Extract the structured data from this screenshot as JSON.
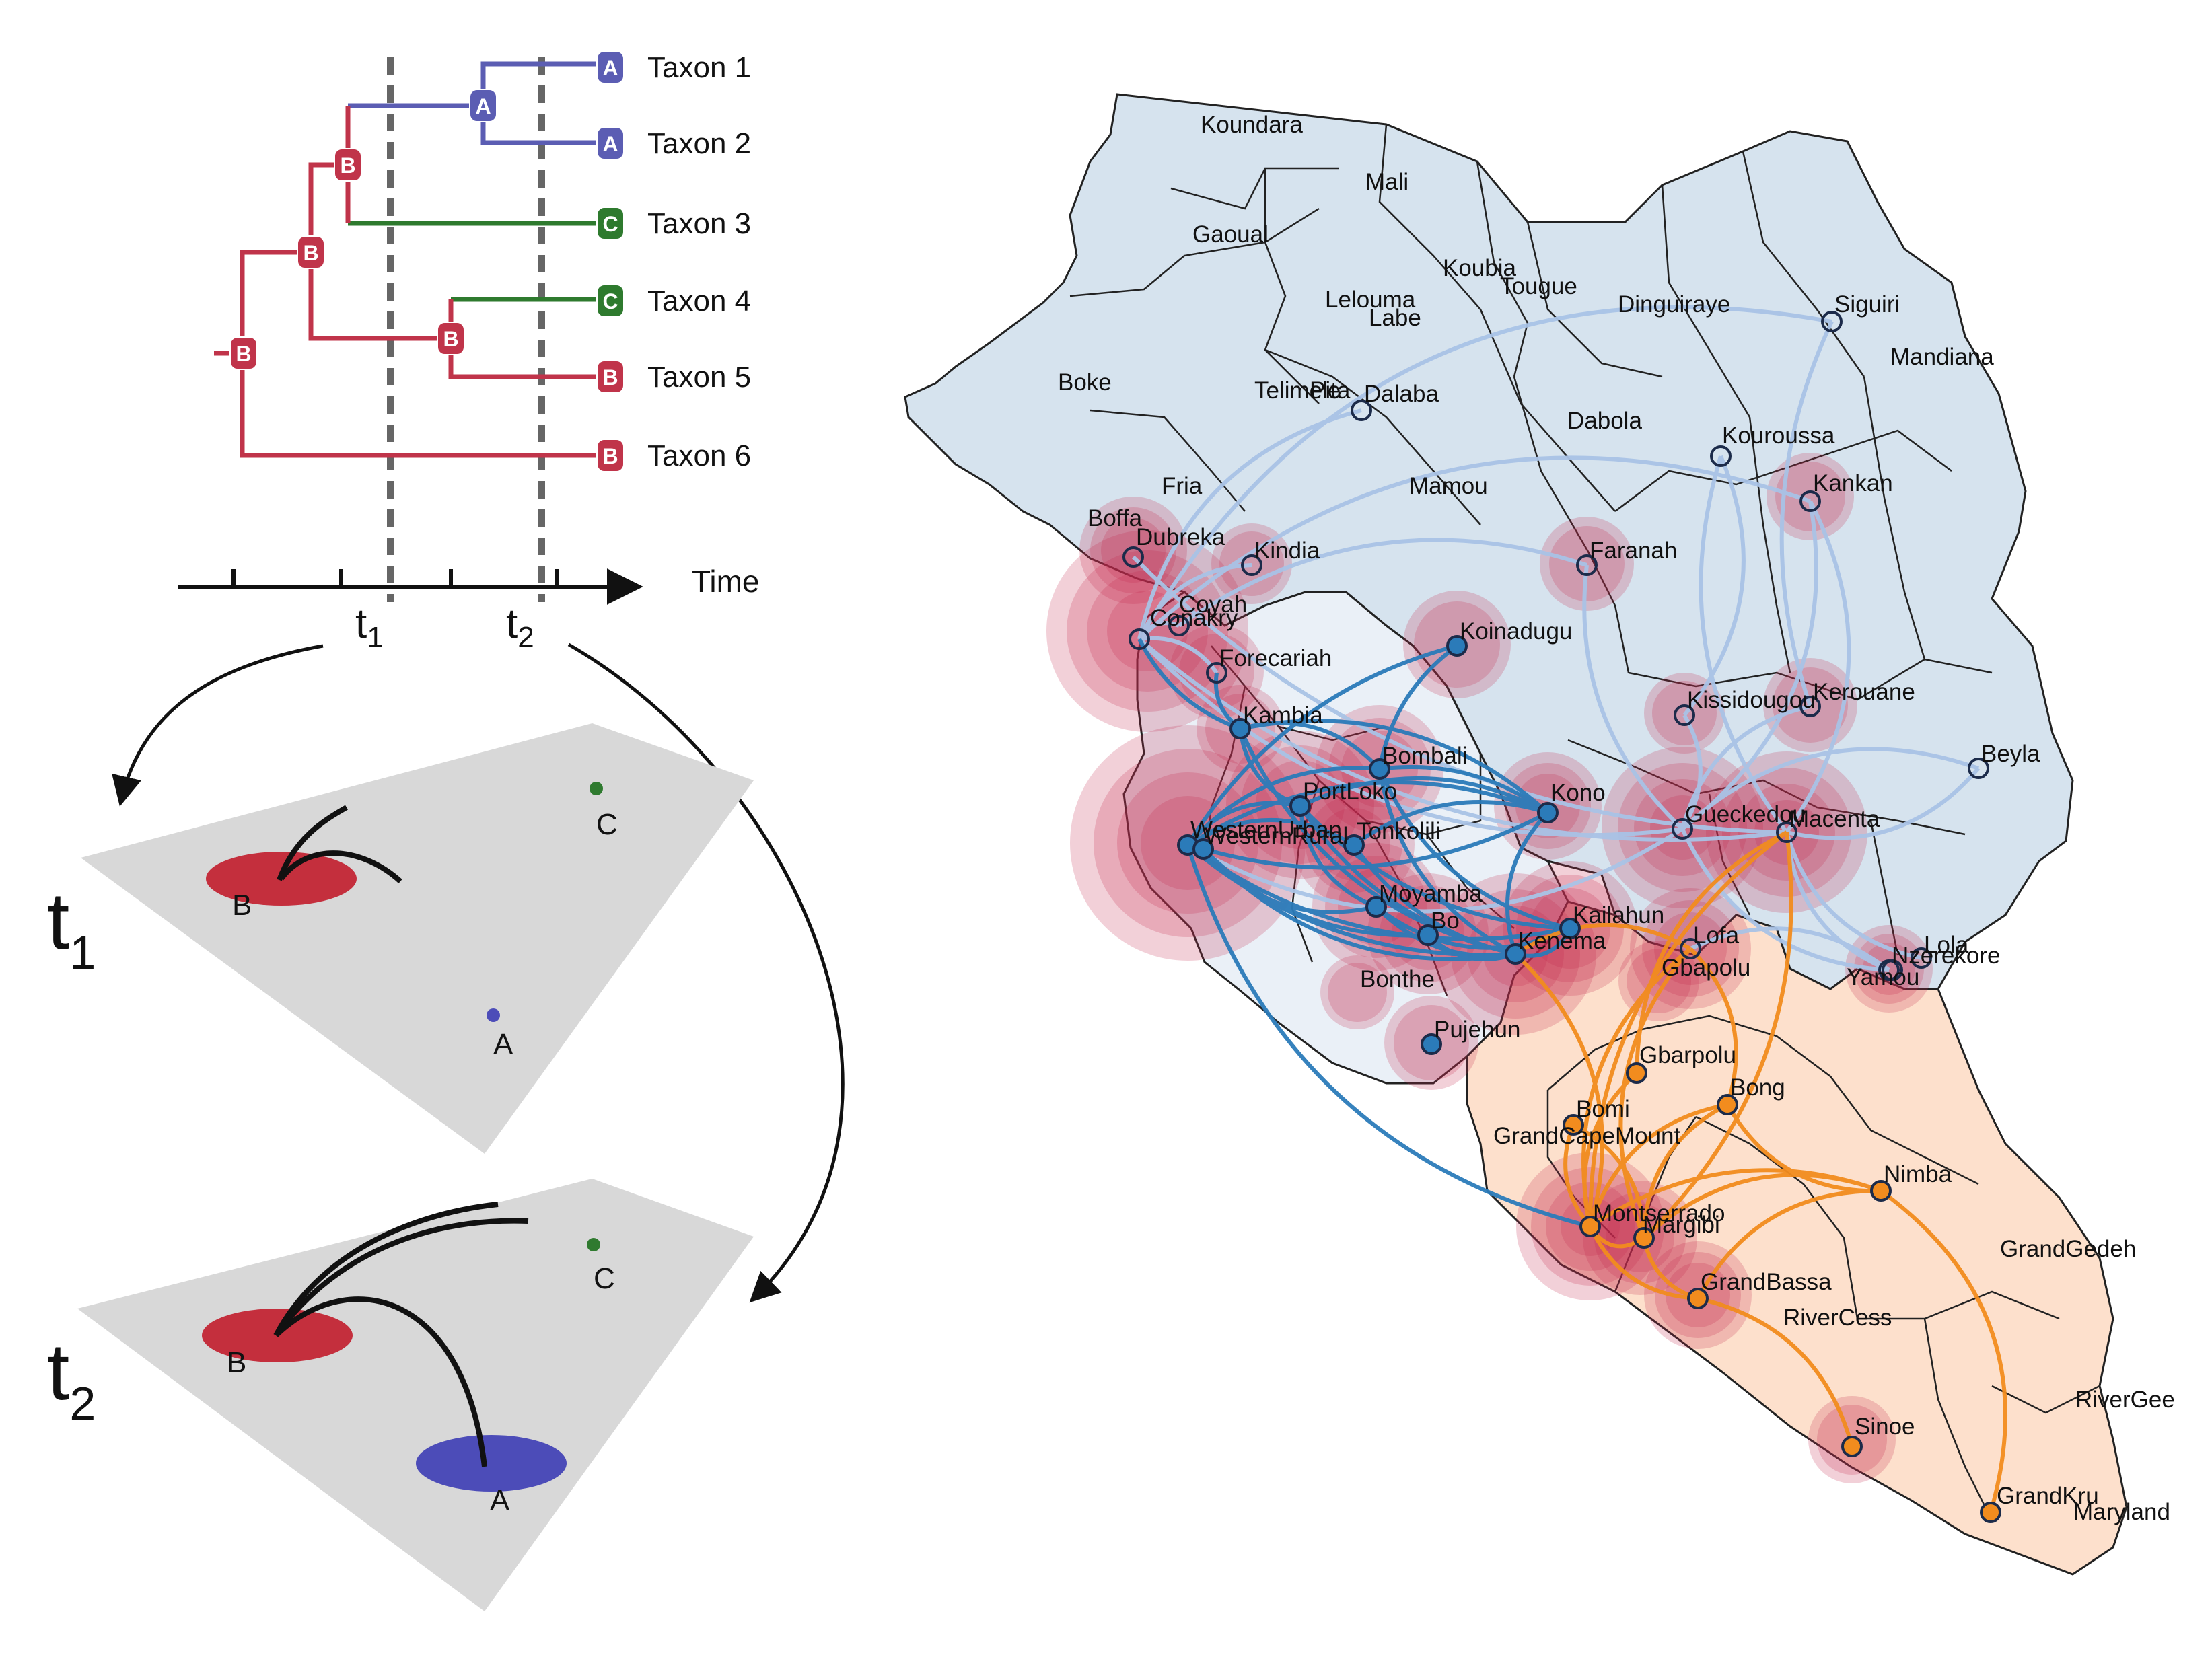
{
  "tree": {
    "taxa": [
      {
        "label": "Taxon 1",
        "state": "A"
      },
      {
        "label": "Taxon 2",
        "state": "A"
      },
      {
        "label": "Taxon 3",
        "state": "C"
      },
      {
        "label": "Taxon 4",
        "state": "C"
      },
      {
        "label": "Taxon 5",
        "state": "B"
      },
      {
        "label": "Taxon 6",
        "state": "B"
      }
    ],
    "internal_nodes": [
      {
        "state": "B",
        "role": "root"
      },
      {
        "state": "B",
        "role": "node-1-5"
      },
      {
        "state": "B",
        "role": "node-1-3"
      },
      {
        "state": "A",
        "role": "node-1-2"
      },
      {
        "state": "B",
        "role": "node-4-5"
      }
    ],
    "time_axis_label": "Time",
    "t1_label": "t",
    "t1_sub": "1",
    "t2_label": "t",
    "t2_sub": "2",
    "colors": {
      "A": "#5b5db3",
      "B": "#c0344a",
      "C": "#2e7a2e"
    }
  },
  "panels": [
    {
      "label": "t",
      "sub": "1",
      "places": [
        {
          "name": "A",
          "color": "#4c4cb8"
        },
        {
          "name": "B",
          "color": "#c42f3d"
        },
        {
          "name": "C",
          "color": "#2f7a2f"
        }
      ]
    },
    {
      "label": "t",
      "sub": "2",
      "places": [
        {
          "name": "A",
          "color": "#4c4cb8"
        },
        {
          "name": "B",
          "color": "#c42f3d"
        },
        {
          "name": "C",
          "color": "#2f7a2f"
        }
      ]
    }
  ],
  "map": {
    "colors": {
      "guinea": "#d6e3ee",
      "sierra_leone": "#eaf0f7",
      "liberia": "#fde0cc",
      "guinea_links": "#a9c3e6",
      "sierra_leone_links": "#2b7bb9",
      "liberia_links": "#f28c1e",
      "cases": "#c2284e"
    },
    "locations": [
      {
        "name": "Koundara"
      },
      {
        "name": "Mali"
      },
      {
        "name": "Gaoual"
      },
      {
        "name": "Koubia"
      },
      {
        "name": "Tougue"
      },
      {
        "name": "Lelouma"
      },
      {
        "name": "Labe"
      },
      {
        "name": "Dinguiraye"
      },
      {
        "name": "Siguiri"
      },
      {
        "name": "Mandiana"
      },
      {
        "name": "Boke"
      },
      {
        "name": "Telimele"
      },
      {
        "name": "Pita"
      },
      {
        "name": "Dalaba"
      },
      {
        "name": "Dabola"
      },
      {
        "name": "Kouroussa"
      },
      {
        "name": "Fria"
      },
      {
        "name": "Mamou"
      },
      {
        "name": "Kankan"
      },
      {
        "name": "Boffa"
      },
      {
        "name": "Dubreka"
      },
      {
        "name": "Kindia"
      },
      {
        "name": "Faranah"
      },
      {
        "name": "Coyah"
      },
      {
        "name": "Conakry"
      },
      {
        "name": "Koinadugu"
      },
      {
        "name": "Forecariah"
      },
      {
        "name": "Kambia"
      },
      {
        "name": "Kissidougou"
      },
      {
        "name": "Kerouane"
      },
      {
        "name": "Bombali"
      },
      {
        "name": "Beyla"
      },
      {
        "name": "PortLoko"
      },
      {
        "name": "Kono"
      },
      {
        "name": "WesternUrban"
      },
      {
        "name": "WesternRural"
      },
      {
        "name": "Tonkolili"
      },
      {
        "name": "Gueckedou"
      },
      {
        "name": "Macenta"
      },
      {
        "name": "Moyamba"
      },
      {
        "name": "Kailahun"
      },
      {
        "name": "Bo"
      },
      {
        "name": "Kenema"
      },
      {
        "name": "Lofa"
      },
      {
        "name": "Lola"
      },
      {
        "name": "Nzerekore"
      },
      {
        "name": "Bonthe"
      },
      {
        "name": "Gbapolu"
      },
      {
        "name": "Yamou"
      },
      {
        "name": "Pujehun"
      },
      {
        "name": "Gbarpolu"
      },
      {
        "name": "Bong"
      },
      {
        "name": "Bomi"
      },
      {
        "name": "GrandCapeMount"
      },
      {
        "name": "Nimba"
      },
      {
        "name": "Montserrado"
      },
      {
        "name": "Margibi"
      },
      {
        "name": "GrandGedeh"
      },
      {
        "name": "GrandBassa"
      },
      {
        "name": "RiverCess"
      },
      {
        "name": "RiverGee"
      },
      {
        "name": "Sinoe"
      },
      {
        "name": "GrandKru"
      },
      {
        "name": "Maryland"
      }
    ]
  }
}
